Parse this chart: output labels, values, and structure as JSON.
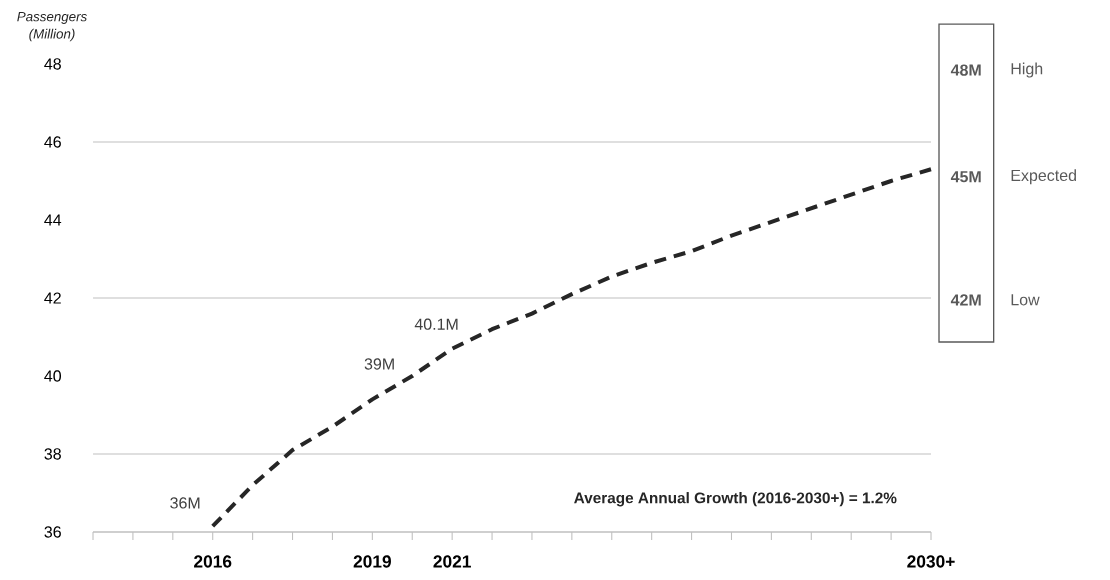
{
  "chart_data": {
    "type": "line",
    "ylabel": "Passengers (Million)",
    "categories": [
      null,
      null,
      null,
      "2016",
      null,
      null,
      null,
      "2019",
      null,
      "2021",
      null,
      null,
      null,
      null,
      null,
      null,
      null,
      null,
      null,
      null,
      null,
      "2030+"
    ],
    "series": [
      {
        "color": "#262626",
        "values": [
          null,
          null,
          null,
          36.15,
          37.2,
          38.1,
          38.7,
          39.4,
          40.0,
          40.7,
          41.2,
          41.6,
          42.1,
          42.55,
          42.9,
          43.2,
          43.6,
          43.95,
          44.3,
          44.65,
          45.0,
          45.3
        ]
      }
    ],
    "ylim": [
      36,
      48
    ],
    "yticks": [
      36,
      38,
      40,
      42,
      44,
      46,
      48
    ],
    "line_style": "dashed",
    "ref_lines": [
      {
        "axis": "y",
        "value": 38,
        "color": "#c0c0c0"
      },
      {
        "axis": "y",
        "value": 42,
        "color": "#c0c0c0"
      },
      {
        "axis": "y",
        "value": 46,
        "color": "#c0c0c0"
      }
    ],
    "annotations": [
      "36M",
      "39M",
      "40.1M",
      "48M",
      "High",
      "45M",
      "Expected",
      "42M",
      "Low",
      "Average Annual Growth (2016-2030+) = 1.2%"
    ]
  }
}
